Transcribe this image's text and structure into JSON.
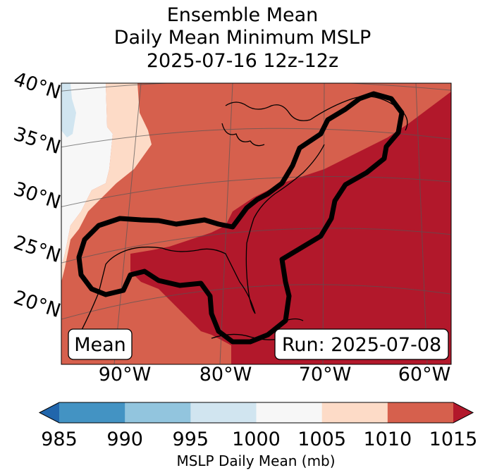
{
  "title": {
    "line1": "Ensemble Mean",
    "line2": "Daily Mean Minimum MSLP",
    "line3": "2025-07-16 12z-12z"
  },
  "map": {
    "lat_labels": [
      "40°N",
      "35°N",
      "30°N",
      "25°N",
      "20°N"
    ],
    "lon_labels": [
      "90°W",
      "80°W",
      "70°W",
      "60°W"
    ],
    "mean_label": "Mean",
    "run_label": "Run: 2025-07-08"
  },
  "colorbar": {
    "ticks": [
      "985",
      "990",
      "995",
      "1000",
      "1005",
      "1010",
      "1015"
    ],
    "label": "MSLP Daily Mean (mb)",
    "colors": [
      "#2166ac",
      "#4393c3",
      "#92c5de",
      "#d1e5f0",
      "#f7f7f7",
      "#fddbc7",
      "#d6604d",
      "#b2182b"
    ]
  }
}
